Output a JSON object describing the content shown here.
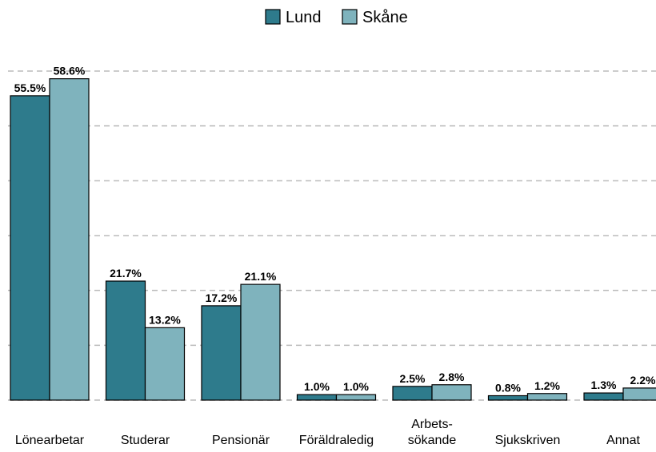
{
  "chart_data": {
    "type": "bar",
    "categories": [
      "Lönearbetar",
      "Studerar",
      "Pensionär",
      "Föräldraledig",
      "Arbets-\nsökande",
      "Sjukskriven",
      "Annat"
    ],
    "series": [
      {
        "name": "Lund",
        "color": "#2e7b8c",
        "values": [
          55.5,
          21.7,
          17.2,
          1.0,
          2.5,
          0.8,
          1.3
        ],
        "value_labels": [
          "55.5%",
          "21.7%",
          "17.2%",
          "1.0%",
          "2.5%",
          "0.8%",
          "1.3%"
        ]
      },
      {
        "name": "Skåne",
        "color": "#7fb3bd",
        "values": [
          58.6,
          13.2,
          21.1,
          1.0,
          2.8,
          1.2,
          2.2
        ],
        "value_labels": [
          "58.6%",
          "13.2%",
          "21.1%",
          "1.0%",
          "2.8%",
          "1.2%",
          "2.2%"
        ]
      }
    ],
    "ylim": [
      0,
      60
    ],
    "yticks": [
      0,
      10,
      20,
      30,
      40,
      50,
      60
    ],
    "grid": true,
    "legend": "top"
  }
}
